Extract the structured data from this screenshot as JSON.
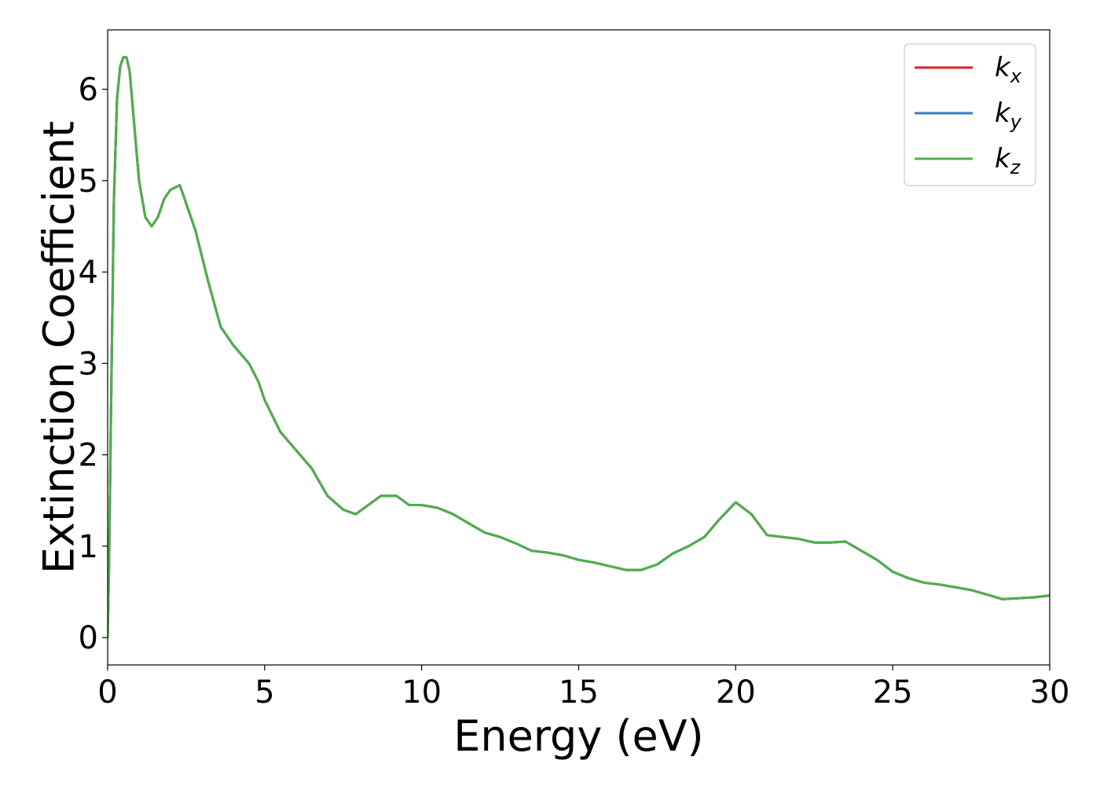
{
  "chart_data": {
    "type": "line",
    "title": "",
    "xlabel": "Energy (eV)",
    "ylabel": "Extinction Coefficient",
    "xlim": [
      0,
      30
    ],
    "ylim": [
      -0.3,
      6.65
    ],
    "xticks": [
      0,
      5,
      10,
      15,
      20,
      25,
      30
    ],
    "yticks": [
      0,
      1,
      2,
      3,
      4,
      5,
      6
    ],
    "grid": false,
    "legend_position": "top-right",
    "x": [
      0,
      0.05,
      0.1,
      0.2,
      0.3,
      0.4,
      0.5,
      0.6,
      0.7,
      0.8,
      1.0,
      1.2,
      1.4,
      1.6,
      1.8,
      2.0,
      2.3,
      2.5,
      2.8,
      3.2,
      3.6,
      4.0,
      4.5,
      4.8,
      5.0,
      5.5,
      6.0,
      6.5,
      7.0,
      7.5,
      7.9,
      8.3,
      8.7,
      9.2,
      9.6,
      10.0,
      10.5,
      11.0,
      11.5,
      12.0,
      12.5,
      13.0,
      13.5,
      14.0,
      14.5,
      15.0,
      15.5,
      16.0,
      16.5,
      17.0,
      17.5,
      18.0,
      18.5,
      19.0,
      19.5,
      20.0,
      20.5,
      21.0,
      21.5,
      22.0,
      22.5,
      23.0,
      23.5,
      24.0,
      24.5,
      25.0,
      25.5,
      26.0,
      26.5,
      27.0,
      27.5,
      28.0,
      28.5,
      29.0,
      29.5,
      30.0
    ],
    "series": [
      {
        "name": "k_x",
        "color": "#e41a1c",
        "values": [
          0,
          0.9,
          2.3,
          4.8,
          5.9,
          6.25,
          6.35,
          6.35,
          6.2,
          5.8,
          5.0,
          4.6,
          4.5,
          4.6,
          4.8,
          4.9,
          4.95,
          4.75,
          4.45,
          3.9,
          3.4,
          3.2,
          3.0,
          2.8,
          2.6,
          2.25,
          2.05,
          1.85,
          1.55,
          1.4,
          1.35,
          1.45,
          1.55,
          1.55,
          1.45,
          1.45,
          1.42,
          1.35,
          1.25,
          1.15,
          1.1,
          1.03,
          0.95,
          0.93,
          0.9,
          0.85,
          0.82,
          0.78,
          0.74,
          0.74,
          0.8,
          0.92,
          1.0,
          1.1,
          1.3,
          1.48,
          1.35,
          1.12,
          1.1,
          1.08,
          1.04,
          1.04,
          1.05,
          0.95,
          0.85,
          0.72,
          0.65,
          0.6,
          0.58,
          0.55,
          0.52,
          0.47,
          0.42,
          0.43,
          0.44,
          0.46
        ]
      },
      {
        "name": "k_y",
        "color": "#377eb8",
        "values": [
          0,
          0.9,
          2.3,
          4.8,
          5.9,
          6.25,
          6.35,
          6.35,
          6.2,
          5.8,
          5.0,
          4.6,
          4.5,
          4.6,
          4.8,
          4.9,
          4.95,
          4.75,
          4.45,
          3.9,
          3.4,
          3.2,
          3.0,
          2.8,
          2.6,
          2.25,
          2.05,
          1.85,
          1.55,
          1.4,
          1.35,
          1.45,
          1.55,
          1.55,
          1.45,
          1.45,
          1.42,
          1.35,
          1.25,
          1.15,
          1.1,
          1.03,
          0.95,
          0.93,
          0.9,
          0.85,
          0.82,
          0.78,
          0.74,
          0.74,
          0.8,
          0.92,
          1.0,
          1.1,
          1.3,
          1.48,
          1.35,
          1.12,
          1.1,
          1.08,
          1.04,
          1.04,
          1.05,
          0.95,
          0.85,
          0.72,
          0.65,
          0.6,
          0.58,
          0.55,
          0.52,
          0.47,
          0.42,
          0.43,
          0.44,
          0.46
        ]
      },
      {
        "name": "k_z",
        "color": "#4daf4a",
        "values": [
          0,
          0.9,
          2.3,
          4.8,
          5.9,
          6.25,
          6.35,
          6.35,
          6.2,
          5.8,
          5.0,
          4.6,
          4.5,
          4.6,
          4.8,
          4.9,
          4.95,
          4.75,
          4.45,
          3.9,
          3.4,
          3.2,
          3.0,
          2.8,
          2.6,
          2.25,
          2.05,
          1.85,
          1.55,
          1.4,
          1.35,
          1.45,
          1.55,
          1.55,
          1.45,
          1.45,
          1.42,
          1.35,
          1.25,
          1.15,
          1.1,
          1.03,
          0.95,
          0.93,
          0.9,
          0.85,
          0.82,
          0.78,
          0.74,
          0.74,
          0.8,
          0.92,
          1.0,
          1.1,
          1.3,
          1.48,
          1.35,
          1.12,
          1.1,
          1.08,
          1.04,
          1.04,
          1.05,
          0.95,
          0.85,
          0.72,
          0.65,
          0.6,
          0.58,
          0.55,
          0.52,
          0.47,
          0.42,
          0.43,
          0.44,
          0.46
        ]
      }
    ],
    "legend": [
      {
        "base": "k",
        "sub": "x"
      },
      {
        "base": "k",
        "sub": "y"
      },
      {
        "base": "k",
        "sub": "z"
      }
    ]
  }
}
